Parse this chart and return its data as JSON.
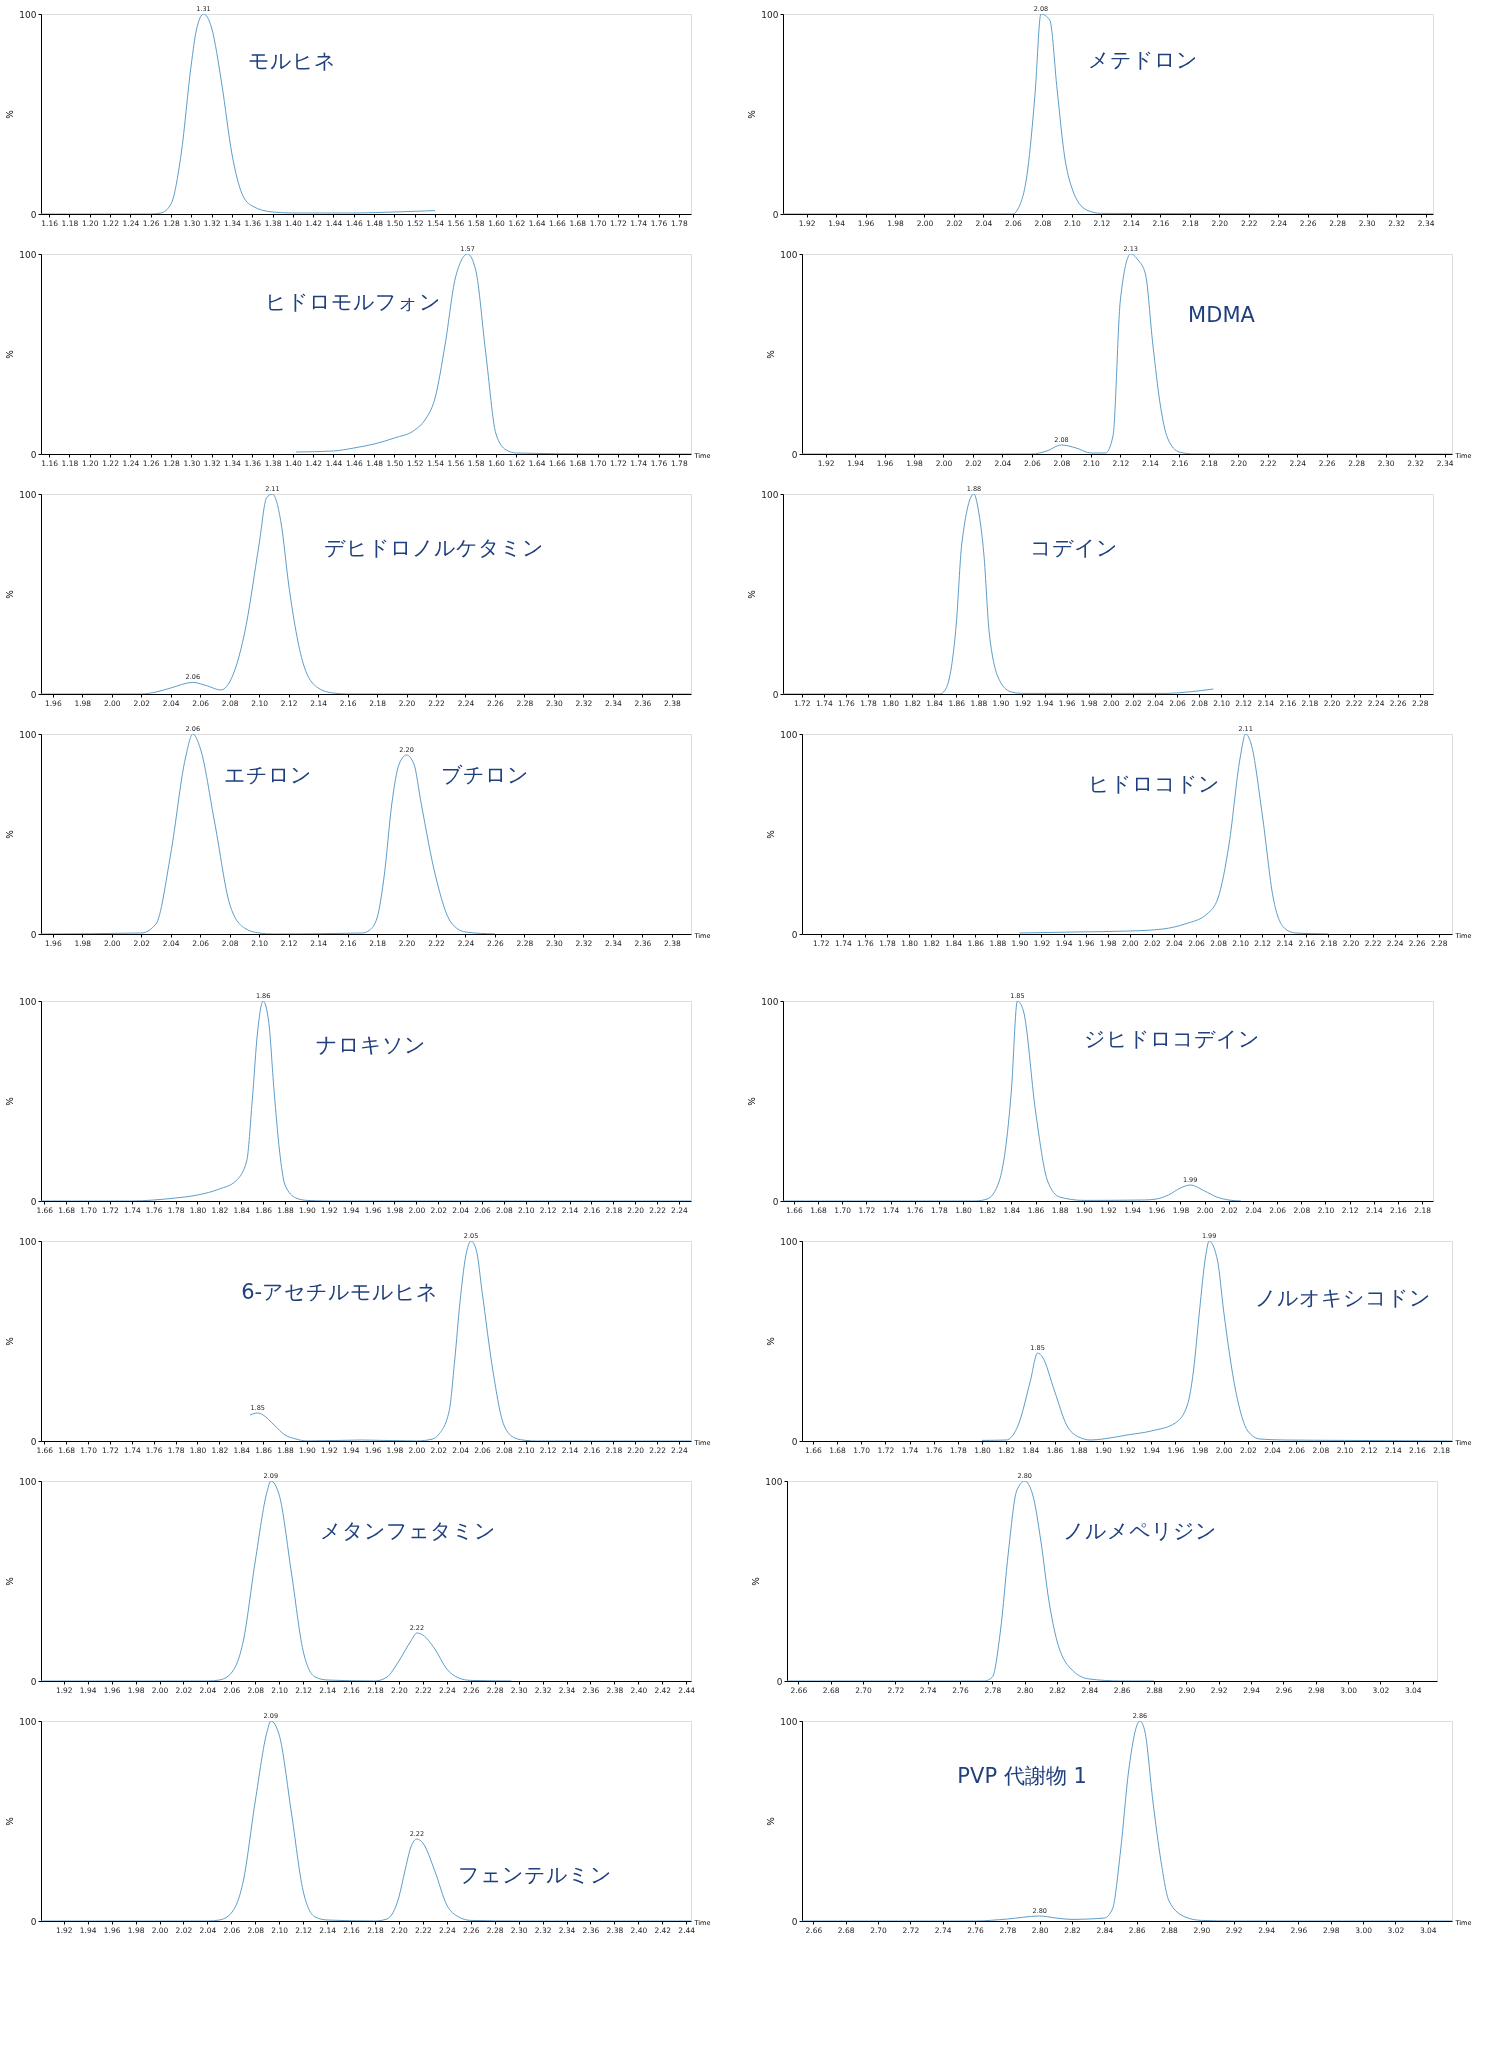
{
  "chart_data": [
    {
      "type": "line",
      "xlim": [
        1.152,
        1.792
      ],
      "ylim": [
        0,
        100
      ],
      "yticks": [
        0,
        100
      ],
      "ylabel": "%",
      "xticks": [
        1.16,
        1.18,
        {
          "value": 1.2,
          "label": "1.20"
        },
        1.22,
        1.24,
        1.26,
        1.28,
        {
          "value": 1.3,
          "label": "1.30"
        },
        1.32,
        1.34,
        1.36,
        1.38,
        {
          "value": 1.4,
          "label": "1.40"
        },
        1.42,
        1.44,
        1.46,
        1.48,
        {
          "value": 1.5,
          "label": "1.50"
        },
        1.52,
        1.54,
        1.56,
        1.58,
        {
          "value": 1.6,
          "label": "1.60"
        },
        1.62,
        1.64,
        1.66,
        1.68,
        {
          "value": 1.7,
          "label": "1.70"
        },
        1.72,
        1.74,
        1.76,
        1.78
      ],
      "annotations": [
        "モルヒネ",
        {
          "text": "1.31",
          "x": 1.312,
          "y": 100
        }
      ],
      "series": [
        {
          "color": "#5e9ec9",
          "x": [
            1.152,
            1.26,
            1.27,
            1.28,
            1.29,
            1.3,
            1.305,
            1.312,
            1.32,
            1.33,
            1.34,
            1.35,
            1.36,
            1.38,
            1.4,
            1.46,
            1.5,
            1.54
          ],
          "values": [
            0,
            0,
            0.5,
            5,
            30,
            75,
            92,
            100,
            93,
            65,
            30,
            10,
            4,
            1,
            0.5,
            0.5,
            1,
            1.7
          ]
        }
      ]
    },
    {
      "type": "line",
      "xlim": [
        1.904,
        2.345
      ],
      "ylim": [
        0,
        100
      ],
      "yticks": [
        0,
        100
      ],
      "ylabel": "%",
      "xticks": [
        1.92,
        1.94,
        1.96,
        1.98,
        {
          "value": 2,
          "label": "2.00"
        },
        2.02,
        2.04,
        2.06,
        2.08,
        {
          "value": 2.1,
          "label": "2.10"
        },
        2.12,
        2.14,
        2.16,
        2.18,
        {
          "value": 2.2,
          "label": "2.20"
        },
        2.22,
        2.24,
        2.26,
        2.28,
        {
          "value": 2.3,
          "label": "2.30"
        },
        2.32,
        2.34
      ],
      "annotations": [
        "メテドロン",
        {
          "text": "2.08",
          "x": 2.079,
          "y": 100
        }
      ],
      "series": [
        {
          "color": "#5e9ec9",
          "x": [
            1.904,
            2.06,
            2.063,
            2.07,
            2.075,
            2.079,
            2.085,
            2.09,
            2.095,
            2.1,
            2.11,
            2.12,
            2.345
          ],
          "values": [
            0,
            0,
            2,
            22,
            60,
            100,
            97,
            62,
            29,
            13,
            2,
            0.3,
            0
          ]
        }
      ]
    },
    {
      "type": "line",
      "xlim": [
        1.152,
        1.792
      ],
      "ylim": [
        0,
        100
      ],
      "yticks": [
        0,
        100
      ],
      "ylabel": "%",
      "xlabel": "Time",
      "xticks": [
        1.16,
        1.18,
        {
          "value": 1.2,
          "label": "1.20"
        },
        1.22,
        1.24,
        1.26,
        1.28,
        {
          "value": 1.3,
          "label": "1.30"
        },
        1.32,
        1.34,
        1.36,
        1.38,
        {
          "value": 1.4,
          "label": "1.40"
        },
        1.42,
        1.44,
        1.46,
        1.48,
        {
          "value": 1.5,
          "label": "1.50"
        },
        1.52,
        1.54,
        1.56,
        1.58,
        {
          "value": 1.6,
          "label": "1.60"
        },
        1.62,
        1.64,
        1.66,
        1.68,
        {
          "value": 1.7,
          "label": "1.70"
        },
        1.72,
        1.74,
        1.76,
        1.78
      ],
      "annotations": [
        "ヒドロモルフォン",
        {
          "text": "1.57",
          "x": 1.572,
          "y": 100
        }
      ],
      "series": [
        {
          "color": "#5e9ec9",
          "x": [
            1.403,
            1.44,
            1.46,
            1.48,
            1.5,
            1.52,
            1.53,
            1.54,
            1.55,
            1.56,
            1.572,
            1.58,
            1.59,
            1.6,
            1.61,
            1.62,
            1.7,
            1.792
          ],
          "values": [
            1,
            1.5,
            3,
            5,
            8,
            12,
            17,
            28,
            55,
            88,
            100,
            92,
            50,
            10,
            2,
            0.5,
            0,
            0
          ]
        }
      ]
    },
    {
      "type": "line",
      "xlim": [
        1.904,
        2.345
      ],
      "ylim": [
        0,
        100
      ],
      "yticks": [
        0,
        100
      ],
      "ylabel": "%",
      "xlabel": "Time",
      "xticks": [
        1.92,
        1.94,
        1.96,
        1.98,
        {
          "value": 2,
          "label": "2.00"
        },
        2.02,
        2.04,
        2.06,
        2.08,
        {
          "value": 2.1,
          "label": "2.10"
        },
        2.12,
        2.14,
        2.16,
        2.18,
        {
          "value": 2.2,
          "label": "2.20"
        },
        2.22,
        2.24,
        2.26,
        2.28,
        {
          "value": 2.3,
          "label": "2.30"
        },
        2.32,
        2.34
      ],
      "annotations": [
        "MDMA",
        {
          "text": "2.08",
          "x": 2.08,
          "y": 4.5
        },
        {
          "text": "2.13",
          "x": 2.127,
          "y": 100
        }
      ],
      "series": [
        {
          "color": "#5e9ec9",
          "x": [
            1.904,
            2.06,
            2.07,
            2.08,
            2.09,
            2.1,
            2.11,
            2.115,
            2.12,
            2.127,
            2.132,
            2.137,
            2.142,
            2.147,
            2.152,
            2.16,
            2.17,
            2.345
          ],
          "values": [
            0,
            0,
            1.5,
            4.5,
            3,
            0.5,
            0.5,
            9,
            77,
            100,
            97,
            90,
            55,
            25,
            8,
            1,
            0,
            0
          ]
        }
      ]
    },
    {
      "type": "line",
      "xlim": [
        1.952,
        2.393
      ],
      "ylim": [
        0,
        100
      ],
      "yticks": [
        0,
        100
      ],
      "ylabel": "%",
      "xticks": [
        1.96,
        1.98,
        {
          "value": 2,
          "label": "2.00"
        },
        2.02,
        2.04,
        2.06,
        2.08,
        {
          "value": 2.1,
          "label": "2.10"
        },
        2.12,
        2.14,
        2.16,
        2.18,
        {
          "value": 2.2,
          "label": "2.20"
        },
        2.22,
        2.24,
        2.26,
        2.28,
        {
          "value": 2.3,
          "label": "2.30"
        },
        2.32,
        2.34,
        2.36,
        2.38
      ],
      "annotations": [
        "デヒドロノルケタミン",
        {
          "text": "2.06",
          "x": 2.055,
          "y": 5.8
        },
        {
          "text": "2.11",
          "x": 2.109,
          "y": 100
        }
      ],
      "series": [
        {
          "color": "#5e9ec9",
          "x": [
            1.952,
            2.02,
            2.03,
            2.04,
            2.055,
            2.065,
            2.074,
            2.08,
            2.09,
            2.1,
            2.105,
            2.109,
            2.115,
            2.12,
            2.13,
            2.14,
            2.15,
            2.16,
            2.393
          ],
          "values": [
            0,
            0,
            1,
            3,
            5.8,
            4,
            2,
            6,
            30,
            75,
            98,
            100,
            85,
            55,
            15,
            3,
            0.5,
            0,
            0
          ]
        }
      ]
    },
    {
      "type": "line",
      "xlim": [
        1.703,
        2.292
      ],
      "ylim": [
        0,
        100
      ],
      "yticks": [
        0,
        100
      ],
      "ylabel": "%",
      "xticks": [
        1.72,
        1.74,
        1.76,
        1.78,
        {
          "value": 1.8,
          "label": "1.80"
        },
        1.82,
        1.84,
        1.86,
        1.88,
        {
          "value": 1.9,
          "label": "1.90"
        },
        1.92,
        1.94,
        1.96,
        1.98,
        {
          "value": 2,
          "label": "2.00"
        },
        2.02,
        2.04,
        2.06,
        2.08,
        {
          "value": 2.1,
          "label": "2.10"
        },
        2.12,
        2.14,
        2.16,
        2.18,
        {
          "value": 2.2,
          "label": "2.20"
        },
        2.22,
        2.24,
        2.26,
        2.28
      ],
      "annotations": [
        "コデイン",
        {
          "text": "1.88",
          "x": 1.876,
          "y": 100
        }
      ],
      "series": [
        {
          "color": "#5e9ec9",
          "x": [
            1.703,
            1.845,
            1.85,
            1.86,
            1.865,
            1.876,
            1.88,
            1.885,
            1.89,
            1.9,
            1.91,
            1.92,
            2.05,
            2.07,
            2.093
          ],
          "values": [
            0,
            0,
            2,
            35,
            75,
            100,
            92,
            70,
            30,
            6,
            1,
            0.3,
            0.3,
            1,
            2.5
          ]
        }
      ]
    },
    {
      "type": "line",
      "xlim": [
        1.952,
        2.393
      ],
      "ylim": [
        0,
        100
      ],
      "yticks": [
        0,
        100
      ],
      "ylabel": "%",
      "xlabel": "Time",
      "xticks": [
        1.96,
        1.98,
        {
          "value": 2,
          "label": "2.00"
        },
        2.02,
        2.04,
        2.06,
        2.08,
        {
          "value": 2.1,
          "label": "2.10"
        },
        2.12,
        2.14,
        2.16,
        2.18,
        {
          "value": 2.2,
          "label": "2.20"
        },
        2.22,
        2.24,
        2.26,
        2.28,
        {
          "value": 2.3,
          "label": "2.30"
        },
        2.32,
        2.34,
        2.36,
        2.38
      ],
      "annotations": [
        "エチロン",
        "ブチロン",
        {
          "text": "2.06",
          "x": 2.055,
          "y": 100
        },
        {
          "text": "2.20",
          "x": 2.2,
          "y": 89.5
        }
      ],
      "series": [
        {
          "color": "#5e9ec9",
          "x": [
            1.952,
            2.02,
            2.03,
            2.04,
            2.05,
            2.055,
            2.06,
            2.07,
            2.08,
            2.09,
            2.1,
            2.11,
            2.17,
            2.175,
            2.18,
            2.185,
            2.19,
            2.195,
            2.2,
            2.205,
            2.21,
            2.22,
            2.23,
            2.24,
            2.26
          ],
          "values": [
            0,
            0.5,
            5,
            40,
            88,
            100,
            93,
            55,
            15,
            3,
            0.5,
            0,
            0.5,
            2,
            8,
            30,
            65,
            85,
            89.5,
            85,
            65,
            28,
            6,
            1,
            0
          ]
        }
      ]
    },
    {
      "type": "line",
      "xlim": [
        1.703,
        2.292
      ],
      "ylim": [
        0,
        100
      ],
      "yticks": [
        0,
        100
      ],
      "ylabel": "%",
      "xlabel": "Time",
      "xticks": [
        1.72,
        1.74,
        1.76,
        1.78,
        {
          "value": 1.8,
          "label": "1.80"
        },
        1.82,
        1.84,
        1.86,
        1.88,
        {
          "value": 1.9,
          "label": "1.90"
        },
        1.92,
        1.94,
        1.96,
        1.98,
        {
          "value": 2,
          "label": "2.00"
        },
        2.02,
        2.04,
        2.06,
        2.08,
        {
          "value": 2.1,
          "label": "2.10"
        },
        2.12,
        2.14,
        2.16,
        2.18,
        {
          "value": 2.2,
          "label": "2.20"
        },
        2.22,
        2.24,
        2.26,
        2.28
      ],
      "annotations": [
        "ヒドロコドン",
        {
          "text": "2.11",
          "x": 2.105,
          "y": 100
        }
      ],
      "series": [
        {
          "color": "#5e9ec9",
          "x": [
            1.9,
            1.95,
            2.0,
            2.03,
            2.05,
            2.07,
            2.08,
            2.09,
            2.1,
            2.105,
            2.11,
            2.12,
            2.13,
            2.14,
            2.15,
            2.18
          ],
          "values": [
            0.5,
            1,
            1.5,
            2.5,
            5,
            10,
            18,
            45,
            88,
            100,
            95,
            60,
            18,
            3,
            0.5,
            0
          ]
        }
      ]
    },
    {
      "type": "line",
      "xlim": [
        1.657,
        2.251
      ],
      "ylim": [
        0,
        100
      ],
      "yticks": [
        0,
        100
      ],
      "ylabel": "%",
      "xticks": [
        1.66,
        1.68,
        {
          "value": 1.7,
          "label": "1.70"
        },
        1.72,
        1.74,
        1.76,
        1.78,
        {
          "value": 1.8,
          "label": "1.80"
        },
        1.82,
        1.84,
        1.86,
        1.88,
        {
          "value": 1.9,
          "label": "1.90"
        },
        1.92,
        1.94,
        1.96,
        1.98,
        {
          "value": 2,
          "label": "2.00"
        },
        2.02,
        2.04,
        2.06,
        2.08,
        {
          "value": 2.1,
          "label": "2.10"
        },
        2.12,
        2.14,
        2.16,
        2.18,
        {
          "value": 2.2,
          "label": "2.20"
        },
        2.22,
        2.24
      ],
      "annotations": [
        "ナロキソン",
        {
          "text": "1.86",
          "x": 1.86,
          "y": 100
        }
      ],
      "series": [
        {
          "color": "#5e9ec9",
          "x": [
            1.657,
            1.74,
            1.76,
            1.78,
            1.8,
            1.82,
            1.835,
            1.845,
            1.85,
            1.855,
            1.86,
            1.865,
            1.87,
            1.875,
            1.88,
            1.89,
            1.9,
            1.92,
            2.251
          ],
          "values": [
            0,
            0,
            0.5,
            1.5,
            3,
            6,
            10,
            20,
            50,
            85,
            100,
            90,
            55,
            25,
            8,
            1.5,
            0.3,
            0,
            0
          ]
        }
      ]
    },
    {
      "type": "line",
      "xlim": [
        1.651,
        2.189
      ],
      "ylim": [
        0,
        100
      ],
      "yticks": [
        0,
        100
      ],
      "ylabel": "%",
      "xticks": [
        1.66,
        1.68,
        {
          "value": 1.7,
          "label": "1.70"
        },
        1.72,
        1.74,
        1.76,
        1.78,
        {
          "value": 1.8,
          "label": "1.80"
        },
        1.82,
        1.84,
        1.86,
        1.88,
        {
          "value": 1.9,
          "label": "1.90"
        },
        1.92,
        1.94,
        1.96,
        1.98,
        {
          "value": 2,
          "label": "2.00"
        },
        2.02,
        2.04,
        2.06,
        2.08,
        {
          "value": 2.1,
          "label": "2.10"
        },
        2.12,
        2.14,
        2.16,
        2.18
      ],
      "annotations": [
        "ジヒドロコデイン",
        {
          "text": "1.85",
          "x": 1.845,
          "y": 100
        },
        {
          "text": "1.99",
          "x": 1.988,
          "y": 8
        }
      ],
      "series": [
        {
          "color": "#5e9ec9",
          "x": [
            1.651,
            1.81,
            1.82,
            1.83,
            1.84,
            1.845,
            1.85,
            1.86,
            1.87,
            1.88,
            1.9,
            1.95,
            1.96,
            1.97,
            1.98,
            1.988,
            2.0,
            2.01,
            2.02,
            2.03
          ],
          "values": [
            0,
            0,
            1,
            10,
            55,
            100,
            95,
            45,
            10,
            2,
            0.3,
            0.5,
            1,
            3,
            6.5,
            8,
            5,
            2,
            0.5,
            0
          ]
        }
      ]
    },
    {
      "type": "line",
      "xlim": [
        1.657,
        2.251
      ],
      "ylim": [
        0,
        100
      ],
      "yticks": [
        0,
        100
      ],
      "ylabel": "%",
      "xlabel": "Time",
      "xticks": [
        1.66,
        1.68,
        {
          "value": 1.7,
          "label": "1.70"
        },
        1.72,
        1.74,
        1.76,
        1.78,
        {
          "value": 1.8,
          "label": "1.80"
        },
        1.82,
        1.84,
        1.86,
        1.88,
        {
          "value": 1.9,
          "label": "1.90"
        },
        1.92,
        1.94,
        1.96,
        1.98,
        {
          "value": 2,
          "label": "2.00"
        },
        2.02,
        2.04,
        2.06,
        2.08,
        {
          "value": 2.1,
          "label": "2.10"
        },
        2.12,
        2.14,
        2.16,
        2.18,
        {
          "value": 2.2,
          "label": "2.20"
        },
        2.22,
        2.24
      ],
      "annotations": [
        "6-アセチルモルヒネ",
        {
          "text": "1.85",
          "x": 1.855,
          "y": 14
        },
        {
          "text": "2.05",
          "x": 2.05,
          "y": 100
        }
      ],
      "series": [
        {
          "color": "#5e9ec9",
          "x": [
            1.848,
            1.855,
            1.86,
            1.87,
            1.88,
            1.89,
            1.9,
            1.95,
            2.0,
            2.015,
            2.02,
            2.03,
            2.035,
            2.04,
            2.045,
            2.05,
            2.055,
            2.06,
            2.07,
            2.08,
            2.09,
            2.1,
            2.11,
            2.251
          ],
          "values": [
            13,
            14,
            13,
            8,
            3,
            1,
            0,
            0.5,
            0,
            1,
            3,
            15,
            40,
            70,
            92,
            100,
            95,
            75,
            35,
            8,
            1.5,
            0.3,
            0,
            0
          ]
        }
      ]
    },
    {
      "type": "line",
      "xlim": [
        1.651,
        2.189
      ],
      "ylim": [
        0,
        100
      ],
      "yticks": [
        0,
        100
      ],
      "ylabel": "%",
      "xlabel": "Time",
      "xticks": [
        1.66,
        1.68,
        {
          "value": 1.7,
          "label": "1.70"
        },
        1.72,
        1.74,
        1.76,
        1.78,
        {
          "value": 1.8,
          "label": "1.80"
        },
        1.82,
        1.84,
        1.86,
        1.88,
        {
          "value": 1.9,
          "label": "1.90"
        },
        1.92,
        1.94,
        1.96,
        1.98,
        {
          "value": 2,
          "label": "2.00"
        },
        2.02,
        2.04,
        2.06,
        2.08,
        {
          "value": 2.1,
          "label": "2.10"
        },
        2.12,
        2.14,
        2.16,
        2.18
      ],
      "annotations": [
        "ノルオキシコドン",
        {
          "text": "1.85",
          "x": 1.846,
          "y": 44
        },
        {
          "text": "1.99",
          "x": 1.988,
          "y": 100
        }
      ],
      "series": [
        {
          "color": "#5e9ec9",
          "x": [
            1.8,
            1.82,
            1.83,
            1.84,
            1.846,
            1.85,
            1.86,
            1.87,
            1.88,
            1.89,
            1.9,
            1.92,
            1.94,
            1.96,
            1.97,
            1.975,
            1.98,
            1.985,
            1.988,
            1.995,
            2.0,
            2.01,
            2.02,
            2.03,
            2.05,
            2.1,
            2.189
          ],
          "values": [
            0.3,
            0.5,
            8,
            30,
            44,
            42,
            25,
            8,
            2,
            0.5,
            1,
            3,
            5,
            9,
            18,
            35,
            65,
            92,
            100,
            90,
            65,
            25,
            5,
            1,
            0.5,
            0.3,
            0
          ]
        }
      ]
    },
    {
      "type": "line",
      "xlim": [
        1.901,
        2.444
      ],
      "ylim": [
        0,
        100
      ],
      "yticks": [
        0,
        100
      ],
      "ylabel": "%",
      "xticks": [
        1.92,
        1.94,
        1.96,
        1.98,
        {
          "value": 2,
          "label": "2.00"
        },
        2.02,
        2.04,
        2.06,
        2.08,
        {
          "value": 2.1,
          "label": "2.10"
        },
        2.12,
        2.14,
        2.16,
        2.18,
        {
          "value": 2.2,
          "label": "2.20"
        },
        2.22,
        2.24,
        2.26,
        2.28,
        {
          "value": 2.3,
          "label": "2.30"
        },
        2.32,
        2.34,
        2.36,
        2.38,
        {
          "value": 2.4,
          "label": "2.40"
        },
        2.42,
        2.44
      ],
      "annotations": [
        "メタンフェタミン",
        {
          "text": "2.09",
          "x": 2.093,
          "y": 100
        },
        {
          "text": "2.22",
          "x": 2.215,
          "y": 24
        }
      ],
      "series": [
        {
          "color": "#5e9ec9",
          "x": [
            1.901,
            2.04,
            2.05,
            2.06,
            2.07,
            2.08,
            2.09,
            2.093,
            2.1,
            2.11,
            2.12,
            2.13,
            2.14,
            2.18,
            2.19,
            2.2,
            2.21,
            2.215,
            2.22,
            2.23,
            2.24,
            2.25,
            2.26,
            2.294
          ],
          "values": [
            0,
            0,
            0.5,
            4,
            20,
            60,
            95,
            100,
            93,
            55,
            15,
            2,
            0.5,
            0,
            2,
            10,
            20,
            24,
            23,
            16,
            6,
            1.5,
            0.3,
            0
          ]
        }
      ]
    },
    {
      "type": "line",
      "xlim": [
        2.653,
        3.055
      ],
      "ylim": [
        0,
        100
      ],
      "yticks": [
        0,
        100
      ],
      "ylabel": "%",
      "xticks": [
        2.66,
        2.68,
        {
          "value": 2.7,
          "label": "2.70"
        },
        2.72,
        2.74,
        2.76,
        2.78,
        {
          "value": 2.8,
          "label": "2.80"
        },
        2.82,
        2.84,
        2.86,
        2.88,
        {
          "value": 2.9,
          "label": "2.90"
        },
        2.92,
        2.94,
        2.96,
        2.98,
        {
          "value": 3,
          "label": "3.00"
        },
        3.02,
        3.04
      ],
      "annotations": [
        "ノルメペリジン",
        {
          "text": "2.80",
          "x": 2.8,
          "y": 100
        }
      ],
      "series": [
        {
          "color": "#5e9ec9",
          "x": [
            2.653,
            2.775,
            2.78,
            2.785,
            2.79,
            2.795,
            2.8,
            2.805,
            2.81,
            2.815,
            2.82,
            2.83,
            2.84,
            2.86,
            2.88
          ],
          "values": [
            0,
            0,
            2,
            25,
            65,
            95,
            100,
            93,
            70,
            40,
            20,
            5,
            1,
            0,
            0
          ]
        }
      ]
    },
    {
      "type": "line",
      "xlim": [
        1.901,
        2.444
      ],
      "ylim": [
        0,
        100
      ],
      "yticks": [
        0,
        100
      ],
      "ylabel": "%",
      "xlabel": "Time",
      "xticks": [
        1.92,
        1.94,
        1.96,
        1.98,
        {
          "value": 2,
          "label": "2.00"
        },
        2.02,
        2.04,
        2.06,
        2.08,
        {
          "value": 2.1,
          "label": "2.10"
        },
        2.12,
        2.14,
        2.16,
        2.18,
        {
          "value": 2.2,
          "label": "2.20"
        },
        2.22,
        2.24,
        2.26,
        2.28,
        {
          "value": 2.3,
          "label": "2.30"
        },
        2.32,
        2.34,
        2.36,
        2.38,
        {
          "value": 2.4,
          "label": "2.40"
        },
        2.42,
        2.44
      ],
      "annotations": [
        "フェンテルミン",
        {
          "text": "2.09",
          "x": 2.093,
          "y": 100
        },
        {
          "text": "2.22",
          "x": 2.215,
          "y": 41
        }
      ],
      "series": [
        {
          "color": "#5e9ec9",
          "x": [
            1.901,
            2.04,
            2.05,
            2.06,
            2.07,
            2.08,
            2.09,
            2.093,
            2.1,
            2.11,
            2.12,
            2.13,
            2.14,
            2.18,
            2.19,
            2.2,
            2.205,
            2.21,
            2.215,
            2.22,
            2.23,
            2.24,
            2.25,
            2.26,
            2.3,
            2.444
          ],
          "values": [
            0,
            0,
            0.5,
            4,
            20,
            60,
            95,
            100,
            93,
            55,
            15,
            2,
            0.5,
            0,
            1,
            12,
            25,
            37,
            41,
            39,
            25,
            8,
            2,
            0.3,
            0,
            0
          ]
        }
      ]
    },
    {
      "type": "line",
      "xlim": [
        2.653,
        3.055
      ],
      "ylim": [
        0,
        100
      ],
      "yticks": [
        0,
        100
      ],
      "ylabel": "%",
      "xlabel": "Time",
      "xticks": [
        2.66,
        2.68,
        {
          "value": 2.7,
          "label": "2.70"
        },
        2.72,
        2.74,
        2.76,
        2.78,
        {
          "value": 2.8,
          "label": "2.80"
        },
        2.82,
        2.84,
        2.86,
        2.88,
        {
          "value": 2.9,
          "label": "2.90"
        },
        2.92,
        2.94,
        2.96,
        2.98,
        {
          "value": 3,
          "label": "3.00"
        },
        3.02,
        3.04
      ],
      "annotations": [
        "PVP 代謝物 1",
        {
          "text": "2.80",
          "x": 2.8,
          "y": 2.5
        },
        {
          "text": "2.86",
          "x": 2.862,
          "y": 100
        }
      ],
      "series": [
        {
          "color": "#5e9ec9",
          "x": [
            2.653,
            2.76,
            2.78,
            2.8,
            2.81,
            2.82,
            2.83,
            2.84,
            2.845,
            2.85,
            2.855,
            2.862,
            2.865,
            2.87,
            2.875,
            2.88,
            2.89,
            2.9,
            2.92,
            3.055
          ],
          "values": [
            0,
            0,
            1,
            2.5,
            1.5,
            0.8,
            1,
            1.5,
            6,
            35,
            75,
            100,
            95,
            60,
            30,
            10,
            2,
            0.3,
            0,
            0
          ]
        }
      ]
    }
  ]
}
